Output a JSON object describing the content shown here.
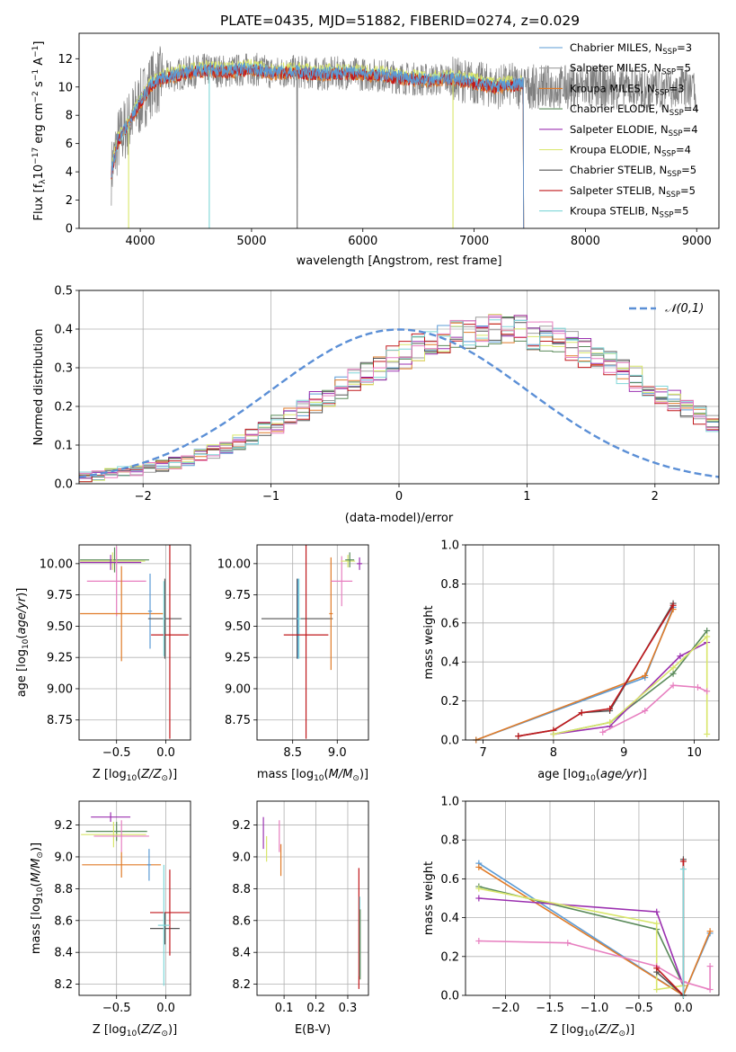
{
  "title": "PLATE=0435, MJD=51882, FIBERID=0274, z=0.029",
  "colors": {
    "Chabrier MILES": "#5b9bd5",
    "Salpeter MILES": "#9e9e9e",
    "Kroupa MILES": "#e07b28",
    "Chabrier ELODIE": "#5a8a5a",
    "Salpeter ELODIE": "#9b30b0",
    "Kroupa ELODIE": "#d8e66a",
    "Chabrier STELIB": "#555555",
    "Salpeter STELIB": "#c0181c",
    "Kroupa STELIB": "#7fd6d8",
    "Kroupa ELODIE alt": "#e77fc0",
    "data": "#808080",
    "normal": "#5b8fd6"
  },
  "chart_data": [
    {
      "id": "spectrum",
      "type": "line",
      "xlabel": "wavelength [Angstrom, rest frame]",
      "ylabel": "Flux [f_λ 10^-17 erg cm^-2 s^-1 A^-1]",
      "xlim": [
        3450,
        9200
      ],
      "ylim": [
        0,
        13.8
      ],
      "xticks": [
        4000,
        5000,
        6000,
        7000,
        8000,
        9000
      ],
      "yticks": [
        0,
        2,
        4,
        6,
        8,
        10,
        12
      ],
      "grid": false,
      "legend_position": "upper-right",
      "legend": [
        {
          "name": "Chabrier MILES, N_SSP=3",
          "color": "#5b9bd5",
          "label_main": "Chabrier MILES, N",
          "label_sub": "SSP",
          "label_tail": "=3"
        },
        {
          "name": "Salpeter MILES, N_SSP=5",
          "color": "#9e9e9e",
          "label_main": "Salpeter MILES, N",
          "label_sub": "SSP",
          "label_tail": "=5"
        },
        {
          "name": "Kroupa MILES, N_SSP=3",
          "color": "#e07b28",
          "label_main": "Kroupa MILES, N",
          "label_sub": "SSP",
          "label_tail": "=3"
        },
        {
          "name": "Chabrier ELODIE, N_SSP=4",
          "color": "#5a8a5a",
          "label_main": "Chabrier ELODIE, N",
          "label_sub": "SSP",
          "label_tail": "=4"
        },
        {
          "name": "Salpeter ELODIE, N_SSP=4",
          "color": "#9b30b0",
          "label_main": "Salpeter ELODIE, N",
          "label_sub": "SSP",
          "label_tail": "=4"
        },
        {
          "name": "Kroupa ELODIE, N_SSP=4",
          "color": "#d8e66a",
          "label_main": "Kroupa ELODIE, N",
          "label_sub": "SSP",
          "label_tail": "=4"
        },
        {
          "name": "Chabrier STELIB, N_SSP=5",
          "color": "#555555",
          "label_main": "Chabrier STELIB, N",
          "label_sub": "SSP",
          "label_tail": "=5"
        },
        {
          "name": "Salpeter STELIB, N_SSP=5",
          "color": "#c0181c",
          "label_main": "Salpeter STELIB, N",
          "label_sub": "SSP",
          "label_tail": "=5"
        },
        {
          "name": "Kroupa STELIB, N_SSP=5",
          "color": "#7fd6d8",
          "label_main": "Kroupa STELIB, N",
          "label_sub": "SSP",
          "label_tail": "=5"
        }
      ],
      "spectrum_model": {
        "x": [
          3740,
          3800,
          3900,
          4000,
          4100,
          4200,
          4300,
          4400,
          4600,
          4800,
          5000,
          5200,
          5400,
          5600,
          5800,
          6000,
          6200,
          6400,
          6600,
          6800,
          7000,
          7200,
          7400
        ],
        "y": [
          4.0,
          6.2,
          7.5,
          8.9,
          10.2,
          10.6,
          10.8,
          11.0,
          11.2,
          11.1,
          11.3,
          11.0,
          11.1,
          10.9,
          11.0,
          10.9,
          10.8,
          10.6,
          10.5,
          10.6,
          10.3,
          10.0,
          10.2
        ]
      },
      "orange_model_end": 7440,
      "gaps": [
        {
          "x": 3895,
          "color": "#d8e66a",
          "y_low": 0
        },
        {
          "x": 4620,
          "color": "#7fd6d8",
          "y_low": 0
        },
        {
          "x": 5410,
          "color": "#808080",
          "y_low": 0
        },
        {
          "x": 6810,
          "color": "#d8e66a",
          "y_low": 0
        }
      ]
    },
    {
      "id": "residuals",
      "type": "line",
      "xlabel": "(data-model)/error",
      "ylabel": "Normed distribution",
      "xlim": [
        -2.5,
        2.5
      ],
      "ylim": [
        0,
        0.5
      ],
      "xticks": [
        -2,
        -1,
        0,
        1,
        2
      ],
      "yticks": [
        0.0,
        0.1,
        0.2,
        0.3,
        0.4,
        0.5
      ],
      "grid": true,
      "legend_position": "upper-right",
      "normal_label": "N(0,1)",
      "bin_width": 0.1,
      "histogram_envelope": [
        0.018,
        0.022,
        0.026,
        0.03,
        0.034,
        0.04,
        0.047,
        0.054,
        0.062,
        0.072,
        0.083,
        0.094,
        0.108,
        0.122,
        0.138,
        0.155,
        0.172,
        0.19,
        0.21,
        0.228,
        0.248,
        0.266,
        0.285,
        0.303,
        0.32,
        0.336,
        0.352,
        0.365,
        0.376,
        0.386,
        0.392,
        0.397,
        0.399,
        0.398,
        0.395,
        0.388,
        0.38,
        0.368,
        0.355,
        0.34,
        0.324,
        0.308,
        0.29,
        0.272,
        0.253,
        0.234,
        0.214,
        0.195,
        0.176,
        0.158,
        0.14
      ]
    },
    {
      "id": "age-vs-Z",
      "type": "scatter",
      "xlabel": "Z [log10(Z/Z⊙)]",
      "ylabel": "age [log10(age/yr)]",
      "xlim": [
        -0.88,
        0.25
      ],
      "ylim": [
        8.59,
        10.15
      ],
      "xticks": [
        -0.5,
        0.0
      ],
      "yticks": [
        8.75,
        9.0,
        9.25,
        9.5,
        9.75,
        10.0
      ],
      "grid": true,
      "points": [
        {
          "color": "#5a8a5a",
          "x": -0.52,
          "xerr": 0.35,
          "y": 10.03,
          "yerr": 0.1
        },
        {
          "color": "#d8e66a",
          "x": -0.54,
          "xerr": 0.33,
          "y": 10.02,
          "yerr": 0.07
        },
        {
          "color": "#9b30b0",
          "x": -0.56,
          "xerr": 0.31,
          "y": 10.01,
          "yerr": 0.06
        },
        {
          "color": "#e77fc0",
          "x": -0.5,
          "xerr": 0.3,
          "y": 9.86,
          "yerr": 0.28
        },
        {
          "color": "#e07b28",
          "x": -0.45,
          "xerr": 0.42,
          "y": 9.6,
          "yerr": 0.38
        },
        {
          "color": "#5b9bd5",
          "x": -0.16,
          "xerr": 0.02,
          "y": 9.62,
          "yerr": 0.3
        },
        {
          "color": "#555555",
          "x": -0.01,
          "xerr": 0.17,
          "y": 9.56,
          "yerr": 0.32
        },
        {
          "color": "#c0181c",
          "x": 0.04,
          "xerr": 0.19,
          "y": 9.43,
          "yerr": 0.83
        },
        {
          "color": "#7fd6d8",
          "x": -0.02,
          "xerr": 0.01,
          "y": 9.56,
          "yerr": 0.3
        }
      ]
    },
    {
      "id": "age-vs-mass",
      "type": "scatter",
      "xlabel": "mass [log10(M/M⊙)]",
      "ylabel": "",
      "xlim": [
        8.1,
        9.35
      ],
      "ylim": [
        8.59,
        10.15
      ],
      "xticks": [
        8.5,
        9.0
      ],
      "yticks": [
        8.75,
        9.0,
        9.25,
        9.5,
        9.75,
        10.0
      ],
      "grid": true,
      "points": [
        {
          "color": "#555555",
          "x": 8.55,
          "xerr": 0.4,
          "y": 9.56,
          "yerr": 0.32
        },
        {
          "color": "#5b9bd5",
          "x": 8.56,
          "xerr": 0.02,
          "y": 9.56,
          "yerr": 0.32
        },
        {
          "color": "#7fd6d8",
          "x": 8.57,
          "xerr": 0.02,
          "y": 9.56,
          "yerr": 0.32
        },
        {
          "color": "#c0181c",
          "x": 8.65,
          "xerr": 0.25,
          "y": 9.43,
          "yerr": 0.83
        },
        {
          "color": "#e07b28",
          "x": 8.93,
          "xerr": 0.02,
          "y": 9.6,
          "yerr": 0.45
        },
        {
          "color": "#e77fc0",
          "x": 9.05,
          "xerr": 0.12,
          "y": 9.86,
          "yerr": 0.2
        },
        {
          "color": "#d8e66a",
          "x": 9.12,
          "xerr": 0.08,
          "y": 10.02,
          "yerr": 0.05
        },
        {
          "color": "#5a8a5a",
          "x": 9.14,
          "xerr": 0.05,
          "y": 10.03,
          "yerr": 0.06
        },
        {
          "color": "#9b30b0",
          "x": 9.25,
          "xerr": 0.03,
          "y": 10.0,
          "yerr": 0.05
        }
      ]
    },
    {
      "id": "mass-weight-vs-age",
      "type": "line",
      "xlabel": "age [log10(age/yr)]",
      "ylabel": "mass weight",
      "xlim": [
        6.75,
        10.35
      ],
      "ylim": [
        0,
        1.0
      ],
      "xticks": [
        7,
        8,
        9,
        10
      ],
      "yticks": [
        0.0,
        0.2,
        0.4,
        0.6,
        0.8,
        1.0
      ],
      "grid": true,
      "series": [
        {
          "color": "#5b9bd5",
          "x": [
            6.9,
            9.3,
            9.7
          ],
          "y": [
            0.0,
            0.32,
            0.68
          ]
        },
        {
          "color": "#e07b28",
          "x": [
            6.9,
            9.3,
            9.7
          ],
          "y": [
            0.0,
            0.33,
            0.67
          ]
        },
        {
          "color": "#555555",
          "x": [
            7.5,
            8.0,
            8.4,
            8.8,
            9.7
          ],
          "y": [
            0.02,
            0.05,
            0.14,
            0.15,
            0.7
          ]
        },
        {
          "color": "#c0181c",
          "x": [
            7.5,
            8.0,
            8.4,
            8.8,
            9.7
          ],
          "y": [
            0.02,
            0.05,
            0.14,
            0.16,
            0.69
          ]
        },
        {
          "color": "#5a8a5a",
          "x": [
            8.0,
            8.8,
            9.7,
            10.18
          ],
          "y": [
            0.03,
            0.09,
            0.34,
            0.56
          ]
        },
        {
          "color": "#9b30b0",
          "x": [
            8.0,
            8.8,
            9.8,
            10.18
          ],
          "y": [
            0.03,
            0.07,
            0.43,
            0.5
          ]
        },
        {
          "color": "#d8e66a",
          "x": [
            8.0,
            8.8,
            9.7,
            10.18,
            10.18
          ],
          "y": [
            0.03,
            0.09,
            0.37,
            0.53,
            0.03
          ]
        },
        {
          "color": "#e77fc0",
          "x": [
            8.7,
            9.3,
            9.7,
            10.05,
            10.18
          ],
          "y": [
            0.04,
            0.15,
            0.28,
            0.27,
            0.25
          ]
        }
      ]
    },
    {
      "id": "mass-vs-Z",
      "type": "scatter",
      "xlabel": "Z [log10(Z/Z⊙)]",
      "ylabel": "mass [log10(M/M⊙)]",
      "xlim": [
        -0.88,
        0.25
      ],
      "ylim": [
        8.13,
        9.35
      ],
      "xticks": [
        -0.5,
        0.0
      ],
      "yticks": [
        8.2,
        8.4,
        8.6,
        8.8,
        9.0,
        9.2
      ],
      "grid": true,
      "points": [
        {
          "color": "#9b30b0",
          "x": -0.56,
          "xerr": 0.2,
          "y": 9.25,
          "yerr": 0.03
        },
        {
          "color": "#5a8a5a",
          "x": -0.5,
          "xerr": 0.31,
          "y": 9.16,
          "yerr": 0.06
        },
        {
          "color": "#d8e66a",
          "x": -0.53,
          "xerr": 0.33,
          "y": 9.14,
          "yerr": 0.08
        },
        {
          "color": "#e77fc0",
          "x": -0.45,
          "xerr": 0.28,
          "y": 9.13,
          "yerr": 0.1
        },
        {
          "color": "#e07b28",
          "x": -0.45,
          "xerr": 0.4,
          "y": 8.95,
          "yerr": 0.08
        },
        {
          "color": "#5b9bd5",
          "x": -0.17,
          "xerr": 0.02,
          "y": 8.95,
          "yerr": 0.1
        },
        {
          "color": "#555555",
          "x": -0.01,
          "xerr": 0.15,
          "y": 8.55,
          "yerr": 0.1
        },
        {
          "color": "#c0181c",
          "x": 0.04,
          "xerr": 0.2,
          "y": 8.65,
          "yerr": 0.27
        },
        {
          "color": "#7fd6d8",
          "x": -0.02,
          "xerr": 0.06,
          "y": 8.57,
          "yerr": 0.38
        }
      ]
    },
    {
      "id": "mass-vs-EBV",
      "type": "scatter",
      "xlabel": "E(B-V)",
      "ylabel": "",
      "xlim": [
        0.015,
        0.365
      ],
      "ylim": [
        8.13,
        9.35
      ],
      "xticks": [
        0.1,
        0.2,
        0.3
      ],
      "yticks": [
        8.2,
        8.4,
        8.6,
        8.8,
        9.0,
        9.2
      ],
      "grid": true,
      "points": [
        {
          "color": "#9b30b0",
          "x": 0.035,
          "xerr": 0.0,
          "y": 9.15,
          "yerr": 0.1
        },
        {
          "color": "#d8e66a",
          "x": 0.045,
          "xerr": 0.0,
          "y": 9.05,
          "yerr": 0.08
        },
        {
          "color": "#e77fc0",
          "x": 0.085,
          "xerr": 0.0,
          "y": 9.13,
          "yerr": 0.1
        },
        {
          "color": "#e07b28",
          "x": 0.09,
          "xerr": 0.0,
          "y": 8.98,
          "yerr": 0.1
        },
        {
          "color": "#c0181c",
          "x": 0.335,
          "xerr": 0.0,
          "y": 8.55,
          "yerr": 0.38
        },
        {
          "color": "#7fd6d8",
          "x": 0.338,
          "xerr": 0.0,
          "y": 8.5,
          "yerr": 0.25
        },
        {
          "color": "#5a8a5a",
          "x": 0.339,
          "xerr": 0.0,
          "y": 8.45,
          "yerr": 0.22
        }
      ]
    },
    {
      "id": "mass-weight-vs-Z",
      "type": "line",
      "xlabel": "Z [log10(Z/Z⊙)]",
      "ylabel": "mass weight",
      "xlim": [
        -2.45,
        0.4
      ],
      "ylim": [
        0,
        1.0
      ],
      "xticks": [
        -2.0,
        -1.5,
        -1.0,
        -0.5,
        0.0
      ],
      "yticks": [
        0.0,
        0.2,
        0.4,
        0.6,
        0.8,
        1.0
      ],
      "grid": true,
      "series": [
        {
          "color": "#5b9bd5",
          "x": [
            -2.3,
            0.0,
            0.3
          ],
          "y": [
            0.68,
            0.0,
            0.32
          ]
        },
        {
          "color": "#e07b28",
          "x": [
            -2.3,
            0.0,
            0.3
          ],
          "y": [
            0.66,
            0.0,
            0.33
          ]
        },
        {
          "color": "#5a8a5a",
          "x": [
            -2.3,
            -0.3,
            0.0
          ],
          "y": [
            0.56,
            0.34,
            0.05
          ]
        },
        {
          "color": "#9b30b0",
          "x": [
            -2.3,
            -0.3,
            0.0
          ],
          "y": [
            0.5,
            0.43,
            0.05
          ]
        },
        {
          "color": "#d8e66a",
          "x": [
            -2.3,
            -0.3,
            -0.3,
            0.0
          ],
          "y": [
            0.55,
            0.37,
            0.03,
            0.05
          ]
        },
        {
          "color": "#e77fc0",
          "x": [
            -2.3,
            -1.3,
            -0.3,
            0.0,
            0.3,
            0.3
          ],
          "y": [
            0.28,
            0.27,
            0.15,
            0.07,
            0.03,
            0.15
          ]
        },
        {
          "color": "#555555",
          "x": [
            -0.3,
            0.0,
            0.0
          ],
          "y": [
            0.12,
            0.0,
            0.7
          ]
        },
        {
          "color": "#c0181c",
          "x": [
            -0.3,
            0.0,
            0.0
          ],
          "y": [
            0.14,
            0.0,
            0.69
          ]
        },
        {
          "color": "#7fd6d8",
          "x": [
            0.0,
            0.0
          ],
          "y": [
            0.0,
            0.65
          ]
        }
      ]
    }
  ]
}
